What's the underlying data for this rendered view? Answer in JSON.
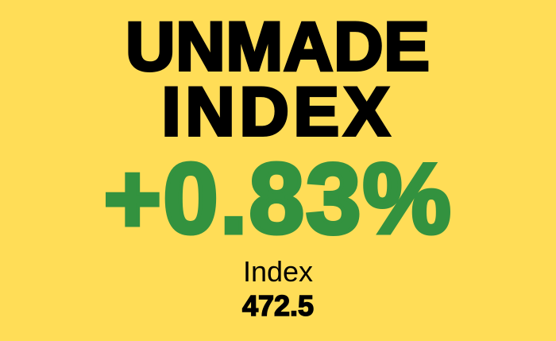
{
  "title": {
    "line1": "UNMADE",
    "line2": "INDEX"
  },
  "change": {
    "text": "+0.83%",
    "color": "#33923F"
  },
  "index": {
    "label": "Index",
    "value": "472.5"
  },
  "colors": {
    "background": "#FFDD57",
    "text": "#000000"
  }
}
